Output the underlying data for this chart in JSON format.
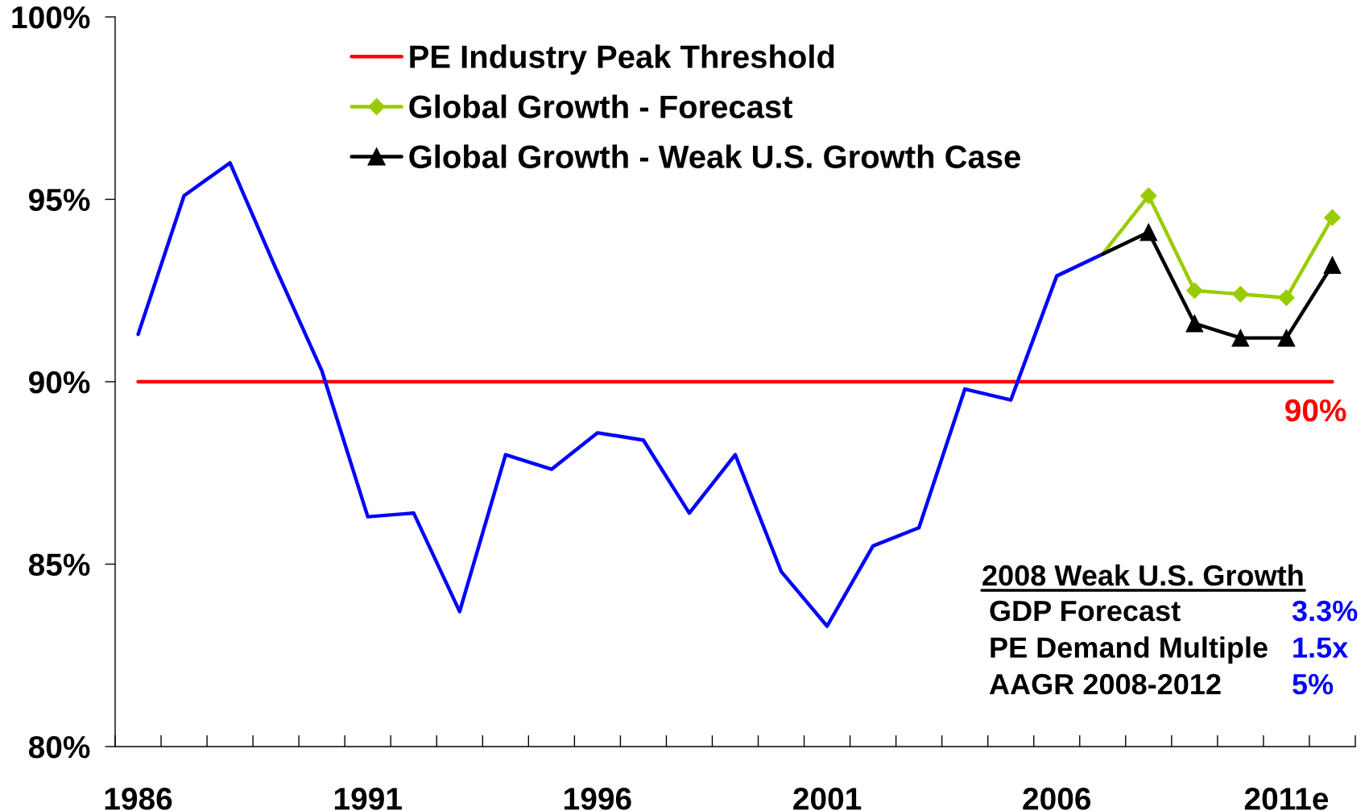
{
  "chart_data": {
    "type": "line",
    "categories": [
      "1986",
      null,
      null,
      null,
      null,
      "1991",
      null,
      null,
      null,
      null,
      "1996",
      null,
      null,
      null,
      null,
      "2001",
      null,
      null,
      null,
      null,
      "2006",
      null,
      null,
      null,
      null,
      "2011e",
      null
    ],
    "series": [
      {
        "color": "#0000ff",
        "values": [
          91.3,
          95.1,
          96.0,
          93.1,
          90.3,
          86.3,
          86.4,
          83.7,
          88.0,
          87.6,
          88.6,
          88.4,
          86.4,
          88.0,
          84.8,
          83.3,
          85.5,
          86.0,
          89.8,
          89.5,
          92.9,
          93.5,
          null,
          null,
          null,
          null,
          null
        ]
      },
      {
        "name": "Global Growth - Forecast",
        "color": "#99cc00",
        "marker": "diamond",
        "values": [
          null,
          null,
          null,
          null,
          null,
          null,
          null,
          null,
          null,
          null,
          null,
          null,
          null,
          null,
          null,
          null,
          null,
          null,
          null,
          null,
          null,
          93.5,
          95.1,
          92.5,
          92.4,
          92.3,
          94.5
        ]
      },
      {
        "name": "Global Growth - Weak U.S. Growth Case",
        "color": "#000000",
        "marker": "triangle",
        "values": [
          null,
          null,
          null,
          null,
          null,
          null,
          null,
          null,
          null,
          null,
          null,
          null,
          null,
          null,
          null,
          null,
          null,
          null,
          null,
          null,
          null,
          93.5,
          94.1,
          91.6,
          91.2,
          91.2,
          93.2
        ]
      }
    ],
    "ylim": [
      80,
      100
    ],
    "yticks": [
      {
        "value": 80,
        "label": "80%"
      },
      {
        "value": 85,
        "label": "85%"
      },
      {
        "value": 90,
        "label": "90%"
      },
      {
        "value": 95,
        "label": "95%"
      },
      {
        "value": 100,
        "label": "100%"
      }
    ],
    "ref_lines": [
      {
        "axis": "y",
        "value": 90,
        "label": "PE Industry Peak Threshold",
        "color": "#ff0000",
        "line_style": "solid"
      }
    ],
    "annotations": [
      {
        "text": "90%",
        "y": 90
      },
      "2008 Weak U.S. Growth",
      "GDP Forecast",
      "3.3%",
      "PE Demand Multiple",
      "1.5x",
      "AAGR 2008-2012",
      "5%"
    ],
    "legend": "top",
    "grid": false
  }
}
